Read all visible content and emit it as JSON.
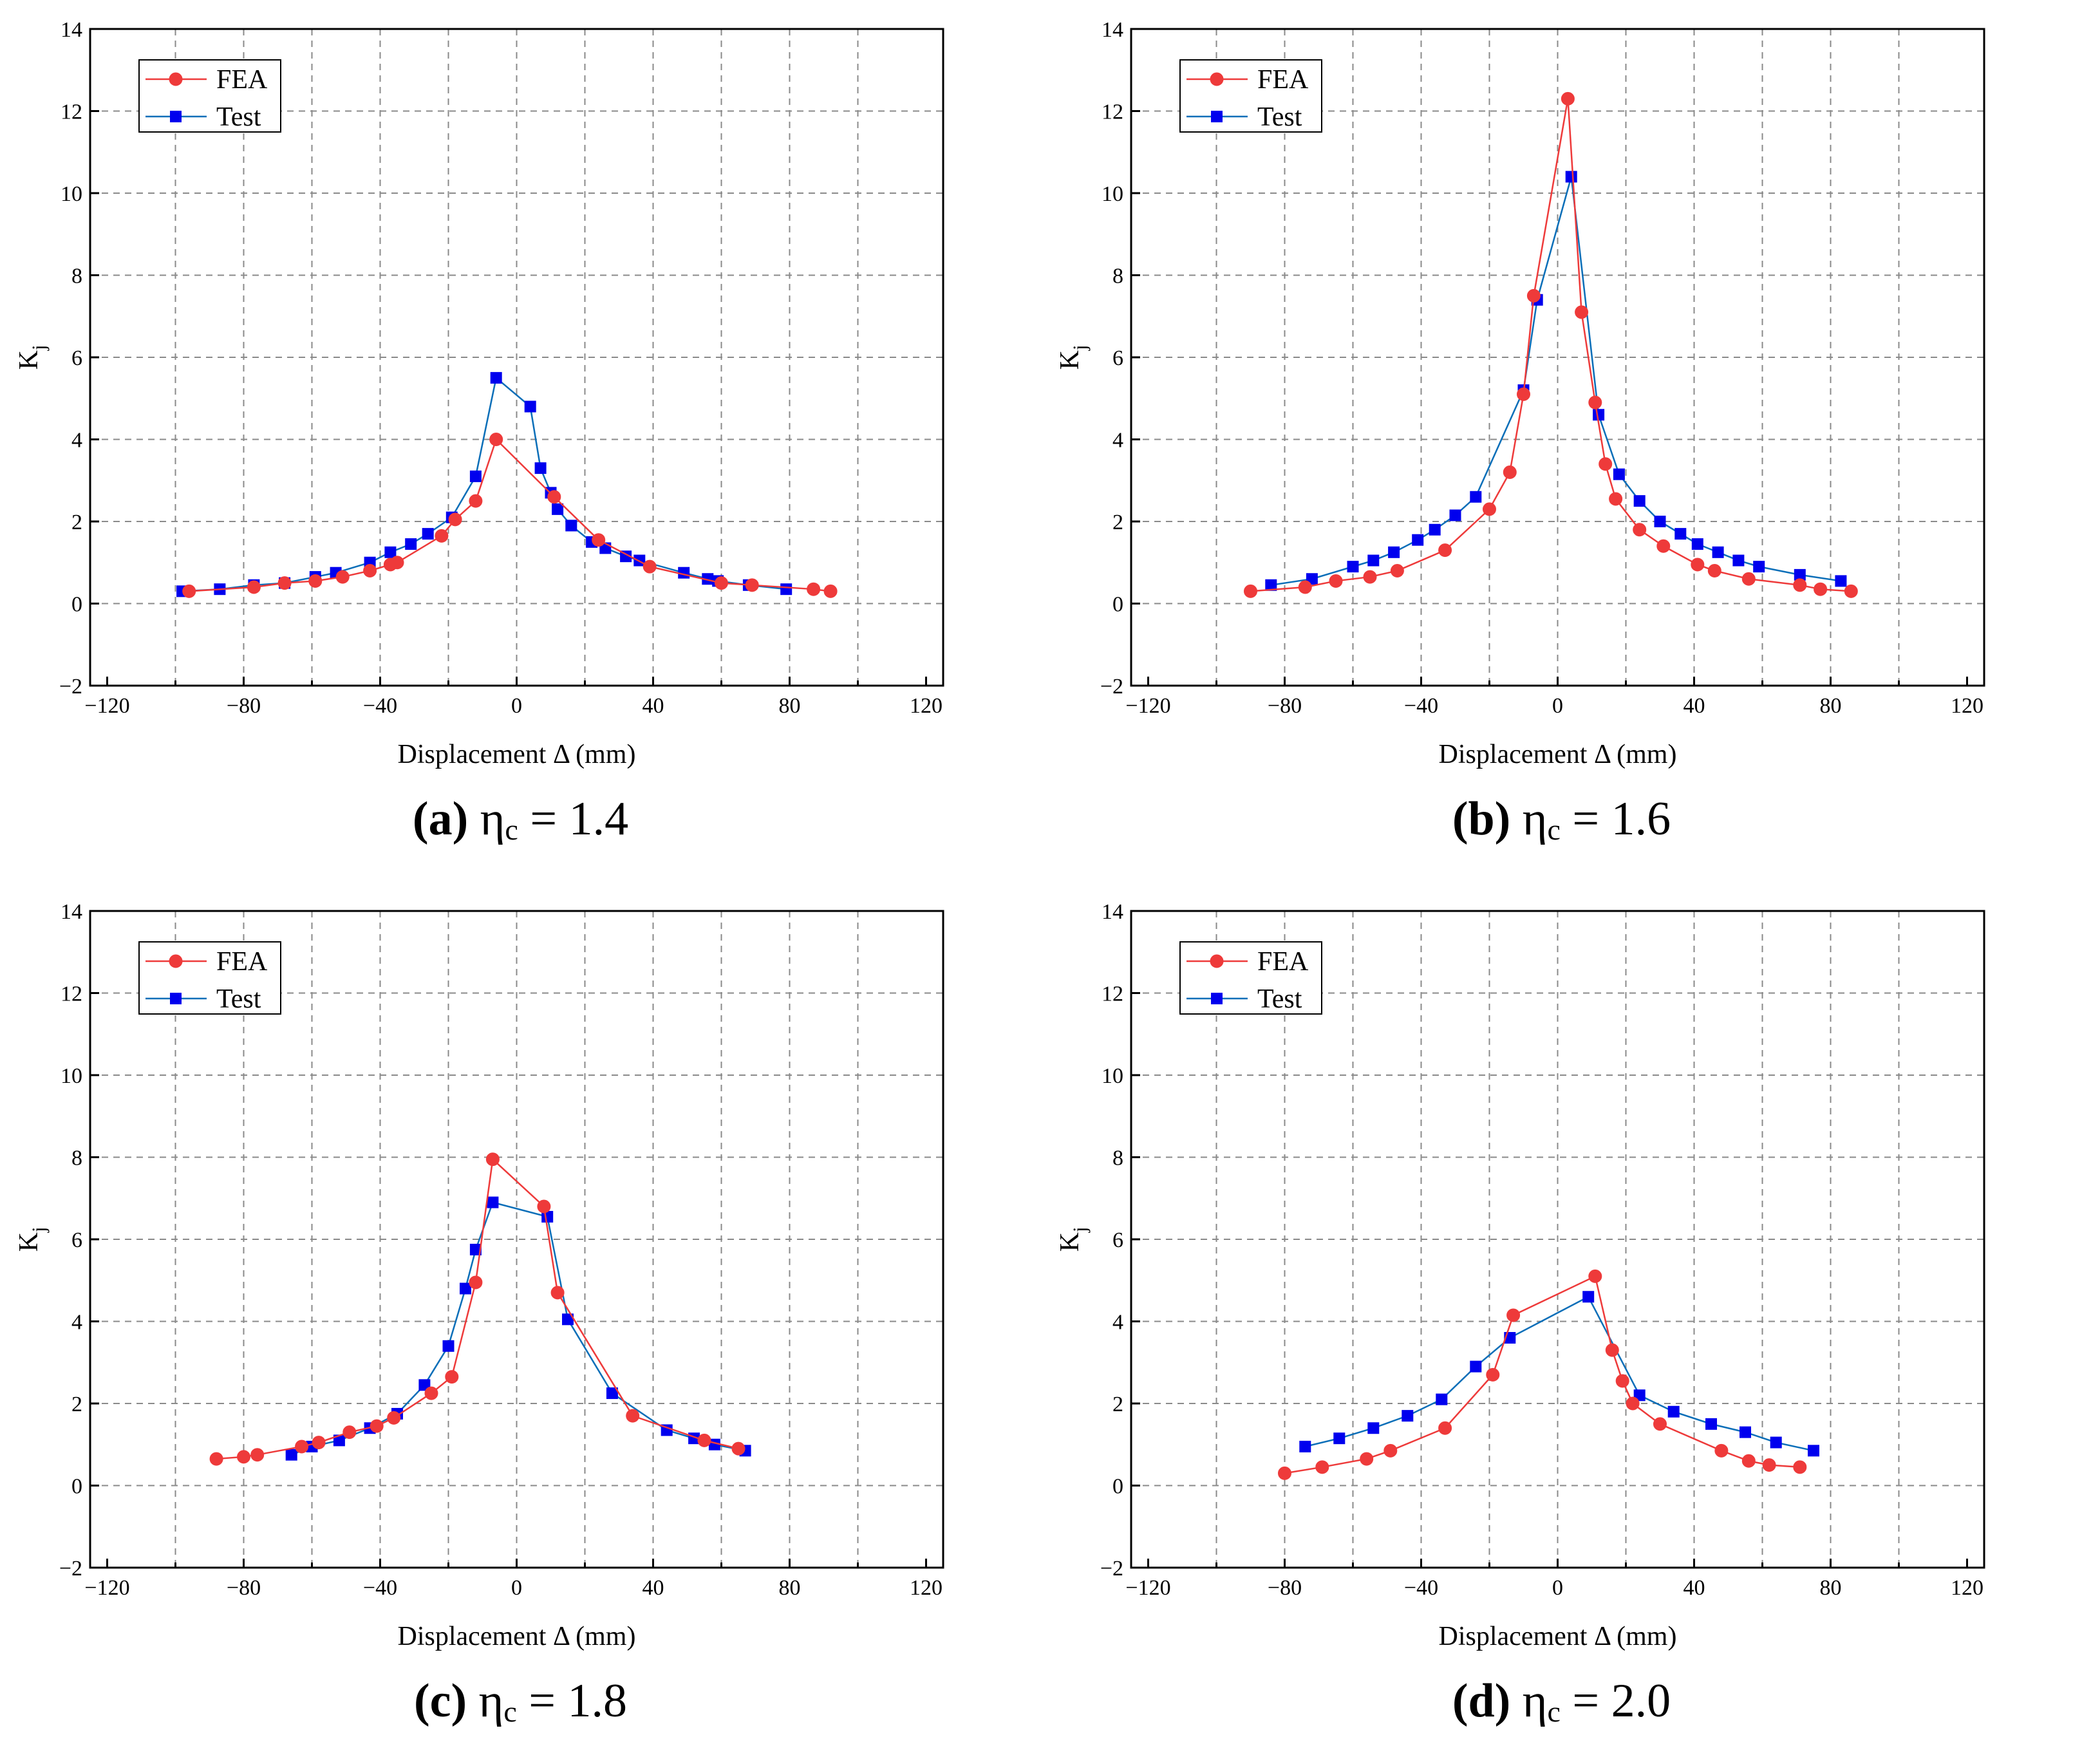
{
  "chart_data": [
    {
      "type": "line",
      "panel_label": "(a)",
      "caption_symbol": "η",
      "caption_subscript": "c",
      "caption_equals": "=",
      "caption_value": "1.4",
      "xlabel": "Displacement Δ (mm)",
      "ylabel_main": "K",
      "ylabel_sub": "j",
      "xlim": [
        -125,
        125
      ],
      "ylim": [
        -2,
        14
      ],
      "xticks": [
        "-120",
        "-80",
        "-40",
        "0",
        "40",
        "80",
        "120"
      ],
      "yticks": [
        "-2",
        "0",
        "2",
        "4",
        "6",
        "8",
        "10",
        "12",
        "14"
      ],
      "grid": true,
      "legend_position": "top-left",
      "series": [
        {
          "name": "FEA",
          "color": "#ee3a3a",
          "marker": "circle",
          "x": [
            -96,
            -77,
            -68,
            -59,
            -51,
            -43,
            -37,
            -35,
            -22,
            -18,
            -12,
            -6,
            11,
            24,
            39,
            60,
            69,
            87,
            92
          ],
          "y": [
            0.3,
            0.4,
            0.5,
            0.55,
            0.65,
            0.8,
            0.95,
            1.0,
            1.65,
            2.05,
            2.5,
            4.0,
            2.6,
            1.55,
            0.9,
            0.5,
            0.45,
            0.35,
            0.3
          ]
        },
        {
          "name": "Test",
          "color": "#0a6eb8",
          "markerColor": "#0000ee",
          "marker": "square",
          "x": [
            -98,
            -87,
            -77,
            -68,
            -59,
            -53,
            -43,
            -37,
            -31,
            -26,
            -19,
            -12,
            -6,
            4,
            7,
            10,
            12,
            16,
            22,
            26,
            32,
            36,
            49,
            56,
            59,
            68,
            79
          ],
          "y": [
            0.3,
            0.35,
            0.45,
            0.5,
            0.65,
            0.75,
            1.0,
            1.25,
            1.45,
            1.7,
            2.1,
            3.1,
            5.5,
            4.8,
            3.3,
            2.7,
            2.3,
            1.9,
            1.5,
            1.35,
            1.15,
            1.05,
            0.75,
            0.6,
            0.55,
            0.45,
            0.35
          ]
        }
      ]
    },
    {
      "type": "line",
      "panel_label": "(b)",
      "caption_symbol": "η",
      "caption_subscript": "c",
      "caption_equals": "=",
      "caption_value": "1.6",
      "xlabel": "Displacement Δ (mm)",
      "ylabel_main": "K",
      "ylabel_sub": "j",
      "xlim": [
        -125,
        125
      ],
      "ylim": [
        -2,
        14
      ],
      "xticks": [
        "-120",
        "-80",
        "-40",
        "0",
        "40",
        "80",
        "120"
      ],
      "yticks": [
        "-2",
        "0",
        "2",
        "4",
        "6",
        "8",
        "10",
        "12",
        "14"
      ],
      "grid": true,
      "legend_position": "top-left",
      "series": [
        {
          "name": "FEA",
          "color": "#ee3a3a",
          "marker": "circle",
          "x": [
            -90,
            -74,
            -65,
            -55,
            -47,
            -33,
            -20,
            -14,
            -10,
            -7,
            3,
            7,
            11,
            14,
            17,
            24,
            31,
            41,
            46,
            56,
            71,
            77,
            86
          ],
          "y": [
            0.3,
            0.4,
            0.55,
            0.65,
            0.8,
            1.3,
            2.3,
            3.2,
            5.1,
            7.5,
            12.3,
            7.1,
            4.9,
            3.4,
            2.55,
            1.8,
            1.4,
            0.95,
            0.8,
            0.6,
            0.45,
            0.35,
            0.3
          ]
        },
        {
          "name": "Test",
          "color": "#0a6eb8",
          "markerColor": "#0000ee",
          "marker": "square",
          "x": [
            -84,
            -72,
            -60,
            -54,
            -48,
            -41,
            -36,
            -30,
            -24,
            -10,
            -6,
            4,
            12,
            18,
            24,
            30,
            36,
            41,
            47,
            53,
            59,
            71,
            83
          ],
          "y": [
            0.45,
            0.6,
            0.9,
            1.05,
            1.25,
            1.55,
            1.8,
            2.15,
            2.6,
            5.2,
            7.4,
            10.4,
            4.6,
            3.15,
            2.5,
            2.0,
            1.7,
            1.45,
            1.25,
            1.05,
            0.9,
            0.7,
            0.55
          ]
        }
      ]
    },
    {
      "type": "line",
      "panel_label": "(c)",
      "caption_symbol": "η",
      "caption_subscript": "c",
      "caption_equals": "=",
      "caption_value": "1.8",
      "xlabel": "Displacement Δ (mm)",
      "ylabel_main": "K",
      "ylabel_sub": "j",
      "xlim": [
        -125,
        125
      ],
      "ylim": [
        -2,
        14
      ],
      "xticks": [
        "-120",
        "-80",
        "-40",
        "0",
        "40",
        "80",
        "120"
      ],
      "yticks": [
        "-2",
        "0",
        "2",
        "4",
        "6",
        "8",
        "10",
        "12",
        "14"
      ],
      "grid": true,
      "legend_position": "top-left",
      "series": [
        {
          "name": "FEA",
          "color": "#ee3a3a",
          "marker": "circle",
          "x": [
            -88,
            -80,
            -76,
            -63,
            -58,
            -49,
            -41,
            -36,
            -25,
            -19,
            -12,
            -7,
            8,
            12,
            34,
            55,
            65
          ],
          "y": [
            0.65,
            0.7,
            0.75,
            0.95,
            1.05,
            1.3,
            1.45,
            1.65,
            2.25,
            2.65,
            4.95,
            7.95,
            6.8,
            4.7,
            1.7,
            1.1,
            0.9
          ]
        },
        {
          "name": "Test",
          "color": "#0a6eb8",
          "markerColor": "#0000ee",
          "marker": "square",
          "x": [
            -66,
            -60,
            -52,
            -43,
            -35,
            -27,
            -20,
            -15,
            -12,
            -7,
            9,
            15,
            28,
            44,
            52,
            58,
            67
          ],
          "y": [
            0.75,
            0.95,
            1.1,
            1.4,
            1.75,
            2.45,
            3.4,
            4.8,
            5.75,
            6.9,
            6.55,
            4.05,
            2.25,
            1.35,
            1.15,
            1.0,
            0.85
          ]
        }
      ]
    },
    {
      "type": "line",
      "panel_label": "(d)",
      "caption_symbol": "η",
      "caption_subscript": "c",
      "caption_equals": "=",
      "caption_value": "2.0",
      "xlabel": "Displacement Δ (mm)",
      "ylabel_main": "K",
      "ylabel_sub": "j",
      "xlim": [
        -125,
        125
      ],
      "ylim": [
        -2,
        14
      ],
      "xticks": [
        "-120",
        "-80",
        "-40",
        "0",
        "40",
        "80",
        "120"
      ],
      "yticks": [
        "-2",
        "0",
        "2",
        "4",
        "6",
        "8",
        "10",
        "12",
        "14"
      ],
      "grid": true,
      "legend_position": "top-left",
      "series": [
        {
          "name": "FEA",
          "color": "#ee3a3a",
          "marker": "circle",
          "x": [
            -80,
            -69,
            -56,
            -49,
            -33,
            -19,
            -13,
            11,
            16,
            19,
            22,
            30,
            48,
            56,
            62,
            71
          ],
          "y": [
            0.3,
            0.45,
            0.65,
            0.85,
            1.4,
            2.7,
            4.15,
            5.1,
            3.3,
            2.55,
            2.0,
            1.5,
            0.85,
            0.6,
            0.5,
            0.45
          ]
        },
        {
          "name": "Test",
          "color": "#0a6eb8",
          "markerColor": "#0000ee",
          "marker": "square",
          "x": [
            -74,
            -64,
            -54,
            -44,
            -34,
            -24,
            -14,
            9,
            24,
            34,
            45,
            55,
            64,
            75
          ],
          "y": [
            0.95,
            1.15,
            1.4,
            1.7,
            2.1,
            2.9,
            3.6,
            4.6,
            2.2,
            1.8,
            1.5,
            1.3,
            1.05,
            0.85
          ]
        }
      ]
    }
  ]
}
